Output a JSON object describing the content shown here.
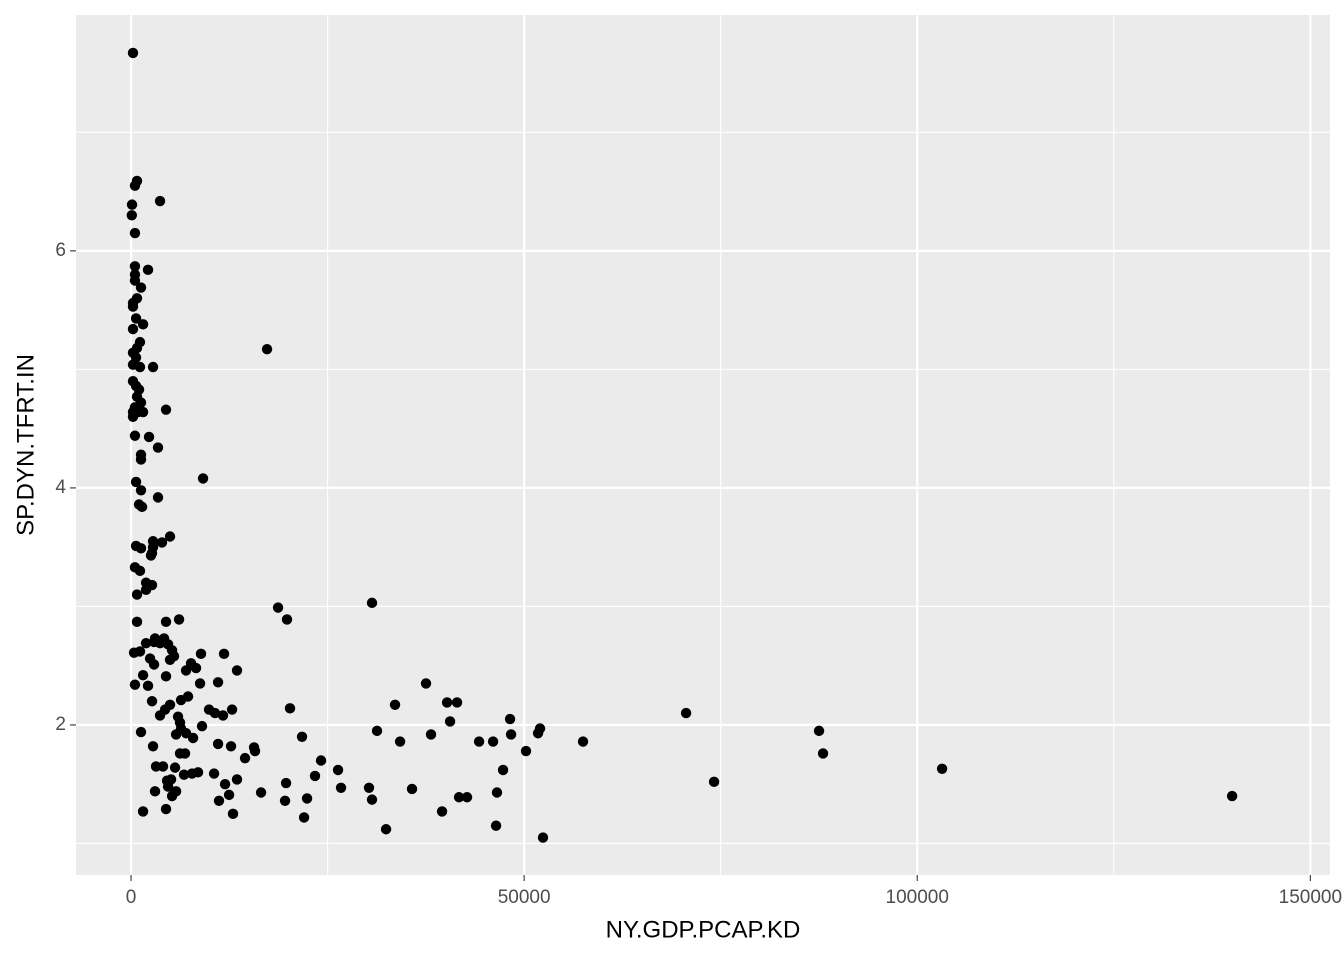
{
  "chart_data": {
    "type": "scatter",
    "x_label": "NY.GDP.PCAP.KD",
    "y_label": "SP.DYN.TFRT.IN",
    "color": "#000000",
    "xlim": [
      -7000,
      152500
    ],
    "ylim": [
      0.734,
      7.99
    ],
    "xticks": [
      0,
      50000,
      100000,
      150000
    ],
    "yticks": [
      2,
      4,
      6
    ],
    "minor_xticks": [
      25000,
      75000,
      125000
    ],
    "minor_yticks": [
      1,
      3,
      5,
      7
    ],
    "grid": true,
    "x": [
      250,
      760,
      500,
      3690,
      130,
      100,
      500,
      2160,
      500,
      500,
      500,
      1270,
      760,
      250,
      250,
      640,
      1530,
      250,
      1140,
      17300,
      760,
      250,
      640,
      250,
      2800,
      1140,
      250,
      640,
      1020,
      760,
      1270,
      500,
      4450,
      250,
      890,
      1530,
      250,
      500,
      2290,
      3430,
      1270,
      1270,
      640,
      9160,
      1270,
      3430,
      1020,
      1400,
      4960,
      2800,
      3940,
      640,
      1270,
      2800,
      2670,
      2540,
      500,
      1140,
      1910,
      2670,
      1910,
      760,
      30650,
      18700,
      19840,
      6110,
      760,
      4450,
      3050,
      4200,
      1910,
      2930,
      3690,
      4710,
      5220,
      380,
      1140,
      8900,
      11830,
      5470,
      2420,
      4960,
      2930,
      7630,
      8270,
      7000,
      13480,
      1530,
      4450,
      500,
      2160,
      8780,
      11070,
      37520,
      7250,
      6360,
      2670,
      4960,
      33580,
      40200,
      41470,
      4330,
      9920,
      12850,
      20220,
      3690,
      10680,
      11700,
      5980,
      70600,
      48210,
      6230,
      40580,
      9030,
      6360,
      52020,
      31290,
      87510,
      1270,
      7000,
      5730,
      38160,
      48340,
      51770,
      7890,
      21750,
      34220,
      44270,
      46050,
      57490,
      2800,
      11070,
      12720,
      15650,
      15770,
      50240,
      6230,
      6870,
      88020,
      14500,
      24170,
      3180,
      4070,
      5600,
      103160,
      47320,
      26330,
      6740,
      8520,
      7760,
      10560,
      23400,
      5090,
      4580,
      13480,
      11960,
      19720,
      74160,
      4710,
      3050,
      5730,
      26710,
      30270,
      35740,
      16540,
      46550,
      5220,
      12470,
      22390,
      41720,
      42740,
      140050,
      11190,
      19590,
      30650,
      1530,
      4450,
      12970,
      22010,
      39560,
      32440,
      46430,
      52400
    ],
    "y": [
      7.67,
      6.59,
      6.55,
      6.42,
      6.39,
      6.3,
      6.15,
      5.84,
      5.87,
      5.8,
      5.75,
      5.69,
      5.6,
      5.56,
      5.53,
      5.43,
      5.38,
      5.34,
      5.23,
      5.17,
      5.18,
      5.14,
      5.1,
      5.04,
      5.02,
      5.02,
      4.9,
      4.86,
      4.83,
      4.77,
      4.72,
      4.68,
      4.66,
      4.64,
      4.64,
      4.64,
      4.6,
      4.44,
      4.43,
      4.34,
      4.28,
      4.24,
      4.05,
      4.08,
      3.98,
      3.92,
      3.86,
      3.84,
      3.59,
      3.55,
      3.54,
      3.51,
      3.49,
      3.5,
      3.45,
      3.43,
      3.33,
      3.3,
      3.2,
      3.18,
      3.14,
      3.1,
      3.03,
      2.99,
      2.89,
      2.89,
      2.87,
      2.87,
      2.73,
      2.73,
      2.69,
      2.7,
      2.69,
      2.68,
      2.63,
      2.61,
      2.62,
      2.6,
      2.6,
      2.58,
      2.56,
      2.55,
      2.51,
      2.52,
      2.48,
      2.46,
      2.46,
      2.42,
      2.41,
      2.34,
      2.33,
      2.35,
      2.36,
      2.35,
      2.24,
      2.21,
      2.2,
      2.17,
      2.17,
      2.19,
      2.19,
      2.13,
      2.13,
      2.13,
      2.14,
      2.08,
      2.1,
      2.08,
      2.07,
      2.1,
      2.05,
      2.02,
      2.03,
      1.99,
      1.97,
      1.97,
      1.95,
      1.95,
      1.94,
      1.93,
      1.92,
      1.92,
      1.92,
      1.93,
      1.89,
      1.9,
      1.86,
      1.86,
      1.86,
      1.86,
      1.82,
      1.84,
      1.82,
      1.81,
      1.78,
      1.78,
      1.76,
      1.76,
      1.76,
      1.72,
      1.7,
      1.65,
      1.65,
      1.64,
      1.63,
      1.62,
      1.62,
      1.58,
      1.6,
      1.59,
      1.59,
      1.57,
      1.54,
      1.53,
      1.54,
      1.5,
      1.51,
      1.52,
      1.48,
      1.44,
      1.44,
      1.47,
      1.47,
      1.46,
      1.43,
      1.43,
      1.4,
      1.41,
      1.38,
      1.39,
      1.39,
      1.4,
      1.36,
      1.36,
      1.37,
      1.27,
      1.29,
      1.25,
      1.22,
      1.27,
      1.12,
      1.15,
      1.05
    ]
  }
}
